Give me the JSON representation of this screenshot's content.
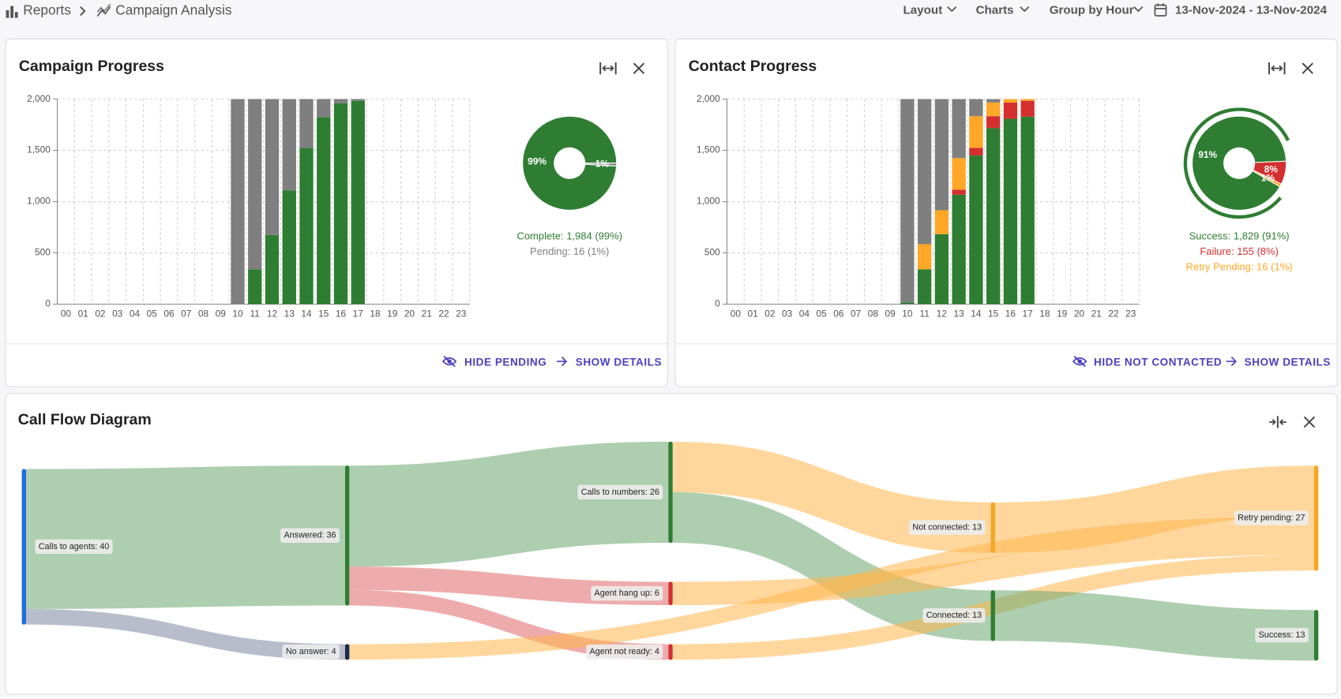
{
  "breadcrumb": {
    "root": "Reports",
    "current": "Campaign Analysis"
  },
  "toolbar": {
    "layout": "Layout",
    "charts": "Charts",
    "group_by": "Group by Hour",
    "date_range": "13-Nov-2024 - 13-Nov-2024"
  },
  "chart_data": [
    {
      "type": "bar",
      "title": "Campaign Progress",
      "stacked": true,
      "categories": [
        "00",
        "01",
        "02",
        "03",
        "04",
        "05",
        "06",
        "07",
        "08",
        "09",
        "10",
        "11",
        "12",
        "13",
        "14",
        "15",
        "16",
        "17",
        "18",
        "19",
        "20",
        "21",
        "22",
        "23"
      ],
      "series": [
        {
          "color": "#2e7d32",
          "values": [
            null,
            null,
            null,
            null,
            null,
            null,
            null,
            null,
            null,
            null,
            0,
            340,
            675,
            1110,
            1525,
            1825,
            1960,
            1984,
            null,
            null,
            null,
            null,
            null,
            null
          ]
        },
        {
          "color": "#7f7f7f",
          "values": [
            null,
            null,
            null,
            null,
            null,
            null,
            null,
            null,
            null,
            null,
            2000,
            1660,
            1325,
            890,
            475,
            175,
            40,
            16,
            null,
            null,
            null,
            null,
            null,
            null
          ]
        }
      ],
      "ylim": [
        0,
        2000
      ],
      "yticks": [
        0,
        500,
        {
          "value": 1000,
          "label": "1,000"
        },
        {
          "value": 1500,
          "label": "1,500"
        },
        {
          "value": 2000,
          "label": "2,000"
        }
      ],
      "grid": true,
      "actions": [
        "HIDE PENDING",
        "SHOW DETAILS"
      ]
    },
    {
      "type": "pie",
      "categories": [
        "Complete: 1,984 (99%)",
        "Pending: 16 (1%)"
      ],
      "values": [
        99,
        1
      ],
      "value_labels": [
        "99%",
        "1%"
      ],
      "colors": [
        "#2e7d32",
        "#7f7f7f"
      ]
    },
    {
      "type": "bar",
      "title": "Contact Progress",
      "stacked": true,
      "categories": [
        "00",
        "01",
        "02",
        "03",
        "04",
        "05",
        "06",
        "07",
        "08",
        "09",
        "10",
        "11",
        "12",
        "13",
        "14",
        "15",
        "16",
        "17",
        "18",
        "19",
        "20",
        "21",
        "22",
        "23"
      ],
      "series": [
        {
          "color": "#2e7d32",
          "values": [
            null,
            null,
            null,
            null,
            null,
            null,
            null,
            null,
            null,
            null,
            15,
            340,
            683,
            1067,
            1450,
            1717,
            1808,
            1829,
            null,
            null,
            null,
            null,
            null,
            null
          ]
        },
        {
          "color": "#d32f2f",
          "values": [
            null,
            null,
            null,
            null,
            null,
            null,
            null,
            null,
            null,
            null,
            0,
            0,
            0,
            50,
            75,
            117,
            158,
            155,
            null,
            null,
            null,
            null,
            null,
            null
          ]
        },
        {
          "color": "#ffa726",
          "values": [
            null,
            null,
            null,
            null,
            null,
            null,
            null,
            null,
            null,
            null,
            0,
            245,
            233,
            308,
            308,
            133,
            33,
            16,
            null,
            null,
            null,
            null,
            null,
            null
          ]
        },
        {
          "color": "#7f7f7f",
          "values": [
            null,
            null,
            null,
            null,
            null,
            null,
            null,
            null,
            null,
            null,
            1985,
            1415,
            1084,
            575,
            167,
            33,
            0,
            0,
            null,
            null,
            null,
            null,
            null,
            null
          ]
        }
      ],
      "ylim": [
        0,
        2000
      ],
      "yticks": [
        0,
        500,
        {
          "value": 1000,
          "label": "1,000"
        },
        {
          "value": 1500,
          "label": "1,500"
        },
        {
          "value": 2000,
          "label": "2,000"
        }
      ],
      "grid": true,
      "actions": [
        "HIDE NOT CONTACTED",
        "SHOW DETAILS"
      ]
    },
    {
      "type": "pie",
      "categories": [
        "Success: 1,829 (91%)",
        "Failure: 155 (8%)",
        "Retry Pending: 16 (1%)"
      ],
      "values": [
        91,
        8,
        1
      ],
      "value_labels": [
        "91%",
        "8%",
        "1%"
      ],
      "colors": [
        "#2e7d32",
        "#d32f2f",
        "#ffa726"
      ]
    },
    {
      "type": "sankey",
      "title": "Call Flow Diagram",
      "nodes": [
        {
          "label": "Calls to agents: 40",
          "value": 40,
          "color": "#1e6fd9"
        },
        {
          "label": "Answered: 36",
          "value": 36,
          "color": "#2e7d32"
        },
        {
          "label": "No answer: 4",
          "value": 4,
          "color": "#1c2b4a"
        },
        {
          "label": "Calls to numbers: 26",
          "value": 26,
          "color": "#2e7d32"
        },
        {
          "label": "Agent hang up: 6",
          "value": 6,
          "color": "#d32f2f"
        },
        {
          "label": "Agent not ready: 4",
          "value": 4,
          "color": "#d32f2f"
        },
        {
          "label": "Not connected: 13",
          "value": 13,
          "color": "#f5a623"
        },
        {
          "label": "Connected: 13",
          "value": 13,
          "color": "#2e7d32"
        },
        {
          "label": "Retry pending: 27",
          "value": 27,
          "color": "#f5a623"
        },
        {
          "label": "Success: 13",
          "value": 13,
          "color": "#2e7d32"
        }
      ],
      "links": [
        {
          "source": 0,
          "target": 1,
          "value": 36,
          "color": "#6aa56e"
        },
        {
          "source": 0,
          "target": 2,
          "value": 4,
          "color": "#7b879e"
        },
        {
          "source": 1,
          "target": 3,
          "value": 26,
          "color": "#6aa56e"
        },
        {
          "source": 1,
          "target": 4,
          "value": 6,
          "color": "#e06666"
        },
        {
          "source": 1,
          "target": 5,
          "value": 4,
          "color": "#e06666"
        },
        {
          "source": 3,
          "target": 6,
          "value": 13,
          "color": "#ffb74d"
        },
        {
          "source": 3,
          "target": 7,
          "value": 13,
          "color": "#6aa56e"
        },
        {
          "source": 6,
          "target": 8,
          "value": 13,
          "color": "#ffb74d"
        },
        {
          "source": 2,
          "target": 8,
          "value": 4,
          "color": "#ffb74d"
        },
        {
          "source": 4,
          "target": 8,
          "value": 6,
          "color": "#ffb74d"
        },
        {
          "source": 5,
          "target": 8,
          "value": 4,
          "color": "#ffb74d"
        },
        {
          "source": 7,
          "target": 9,
          "value": 13,
          "color": "#6aa56e"
        }
      ]
    }
  ]
}
